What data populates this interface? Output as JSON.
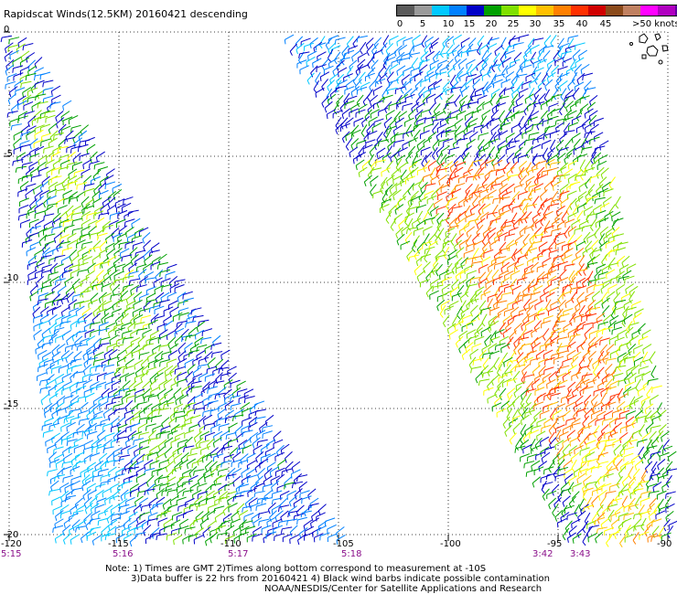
{
  "title": "Rapidscat Winds(12.5KM) 20160421 descending",
  "legend": {
    "ticks": [
      "0",
      "5",
      "10",
      "15",
      "20",
      "25",
      "30",
      "35",
      "40",
      "45"
    ],
    "unit_label": ">50 knots",
    "colors": [
      "#5a5a5a",
      "#9a9a9a",
      "#00c8ff",
      "#0080ff",
      "#0000c8",
      "#00a000",
      "#80e000",
      "#ffff00",
      "#ffc000",
      "#ff8000",
      "#ff3000",
      "#d00000",
      "#8a4a1a",
      "#c08060",
      "#ff00ff",
      "#b000c0",
      "#6000a0",
      "#200060"
    ]
  },
  "lat_labels": [
    "0",
    "-5",
    "-10",
    "-15",
    "-20"
  ],
  "lon_labels": [
    "-120",
    "-115",
    "-110",
    "-105",
    "-100",
    "-95",
    "-90"
  ],
  "time_labels": {
    "left_start": "5:15",
    "left": [
      "5:16",
      "5:17",
      "5:18"
    ],
    "right": [
      "3:42",
      "3:43"
    ]
  },
  "footer": {
    "line1": "Note: 1) Times are GMT 2)Times along bottom correspond to measurement at -10S",
    "line2": "3)Data buffer is 22 hrs from 20160421 4) Black wind barbs indicate possible contamination",
    "line3": "NOAA/NESDIS/Center for Satellite Applications and Research"
  }
}
